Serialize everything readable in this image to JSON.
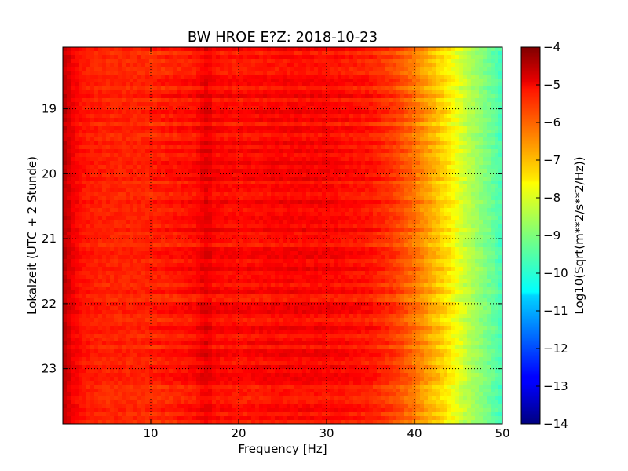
{
  "chart_data": {
    "type": "heatmap",
    "title": "BW HROE E?Z: 2018-10-23",
    "xlabel": "Frequency [Hz]",
    "ylabel": "Lokalzeit (UTC + 2 Stunde)",
    "xlim": [
      0,
      50
    ],
    "ylim": [
      18.05,
      23.85
    ],
    "y_inverted": true,
    "x_ticks": [
      10,
      20,
      30,
      40,
      50
    ],
    "x_tick_labels": [
      "10",
      "20",
      "30",
      "40",
      "50"
    ],
    "y_ticks": [
      19,
      20,
      21,
      22,
      23
    ],
    "y_tick_labels": [
      "19",
      "20",
      "21",
      "22",
      "23"
    ],
    "grid": true,
    "grid_style": "dotted",
    "colormap": "jet",
    "colorbar": {
      "label": "Log10(Sqrt(m**2/s**2/Hz))",
      "range": [
        -14,
        -4
      ],
      "ticks": [
        -4,
        -5,
        -6,
        -7,
        -8,
        -9,
        -10,
        -11,
        -12,
        -13,
        -14
      ],
      "tick_labels": [
        "−4",
        "−5",
        "−6",
        "−7",
        "−8",
        "−9",
        "−10",
        "−11",
        "−12",
        "−13",
        "−14"
      ]
    },
    "spectrum_profile": {
      "frequency_hz": [
        0,
        0.5,
        1,
        2,
        3,
        5,
        10,
        15,
        16.5,
        17,
        20,
        25,
        30,
        35,
        38,
        40,
        42,
        44,
        45,
        46,
        47,
        48,
        49,
        50
      ],
      "log10_amplitude": [
        -4.6,
        -4.8,
        -5.1,
        -5.4,
        -5.5,
        -5.6,
        -5.6,
        -5.4,
        -5.0,
        -5.3,
        -5.4,
        -5.3,
        -5.3,
        -5.5,
        -5.9,
        -6.4,
        -7.0,
        -7.6,
        -8.0,
        -8.4,
        -8.7,
        -9.0,
        -9.3,
        -9.6
      ]
    }
  }
}
